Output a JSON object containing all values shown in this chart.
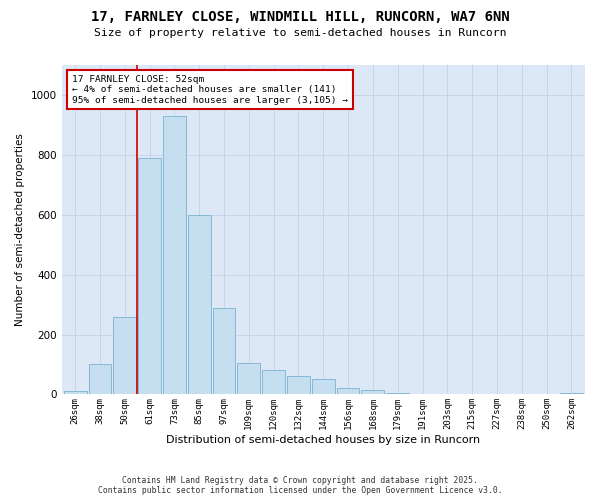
{
  "title_line1": "17, FARNLEY CLOSE, WINDMILL HILL, RUNCORN, WA7 6NN",
  "title_line2": "Size of property relative to semi-detached houses in Runcorn",
  "xlabel": "Distribution of semi-detached houses by size in Runcorn",
  "ylabel": "Number of semi-detached properties",
  "footer_line1": "Contains HM Land Registry data © Crown copyright and database right 2025.",
  "footer_line2": "Contains public sector information licensed under the Open Government Licence v3.0.",
  "bin_labels": [
    "26sqm",
    "38sqm",
    "50sqm",
    "61sqm",
    "73sqm",
    "85sqm",
    "97sqm",
    "109sqm",
    "120sqm",
    "132sqm",
    "144sqm",
    "156sqm",
    "168sqm",
    "179sqm",
    "191sqm",
    "203sqm",
    "215sqm",
    "227sqm",
    "238sqm",
    "250sqm",
    "262sqm"
  ],
  "bar_values": [
    10,
    100,
    260,
    790,
    930,
    600,
    290,
    105,
    80,
    60,
    50,
    20,
    15,
    5,
    3,
    2,
    1,
    1,
    0,
    0,
    5
  ],
  "bar_color": "#c5dff0",
  "bar_edge_color": "#7ab3d3",
  "vline_x_idx": 2.5,
  "vline_color": "#cc0000",
  "annotation_box_color": "#cc0000",
  "property_label": "17 FARNLEY CLOSE: 52sqm",
  "annotation_line2": "← 4% of semi-detached houses are smaller (141)",
  "annotation_line3": "95% of semi-detached houses are larger (3,105) →",
  "ylim": [
    0,
    1100
  ],
  "yticks": [
    0,
    200,
    400,
    600,
    800,
    1000
  ],
  "grid_color": "#c8d4e8",
  "background_color": "#dce8f5"
}
